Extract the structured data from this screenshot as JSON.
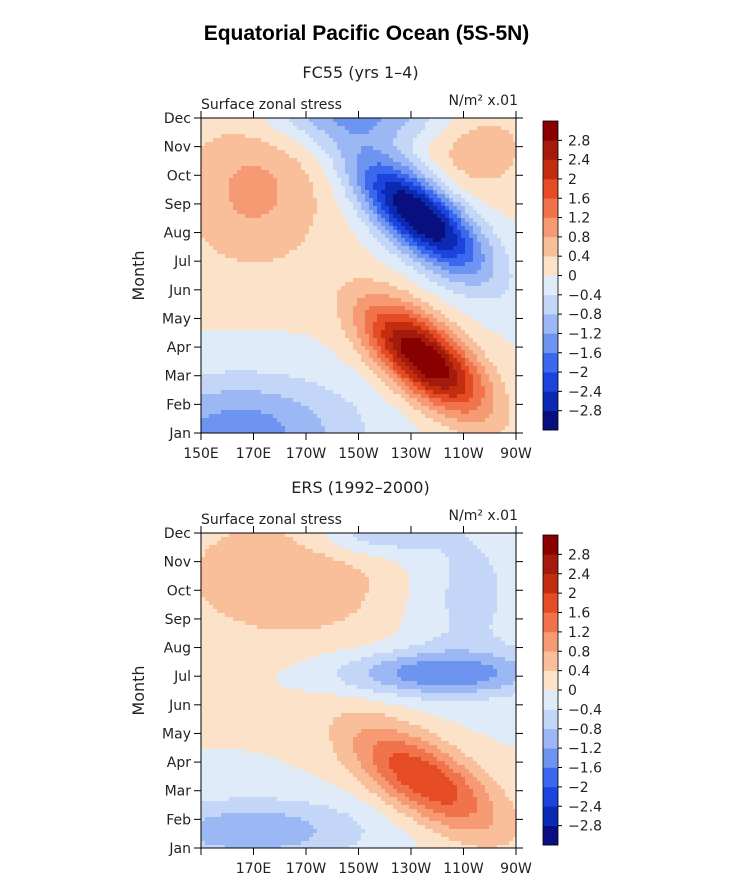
{
  "figure": {
    "title": "Equatorial Pacific Ocean (5S-5N)"
  },
  "chart_data": [
    {
      "type": "heatmap",
      "title": "FC55 (yrs 1–4)",
      "subtitle_left": "Surface zonal stress",
      "subtitle_right": "N/m² x.01",
      "ylabel": "Month",
      "x_ticks": [
        "150E",
        "170E",
        "170W",
        "150W",
        "130W",
        "110W",
        "90W"
      ],
      "y_ticks": [
        "Jan",
        "Feb",
        "Mar",
        "Apr",
        "May",
        "Jun",
        "Jul",
        "Aug",
        "Sep",
        "Oct",
        "Nov",
        "Dec"
      ],
      "colorbar_labels": [
        "2.8",
        "2.4",
        "2",
        "1.6",
        "1.2",
        "0.8",
        "0.4",
        "0",
        "−0.4",
        "−0.8",
        "−1.2",
        "−1.6",
        "−2",
        "−2.4",
        "−2.8"
      ],
      "x_range_deg_east": [
        150,
        270
      ],
      "y_range_month": [
        0,
        11
      ],
      "features": [
        {
          "lon": 235,
          "month": 2.6,
          "amp": 3.3,
          "slon": 16,
          "smon": 1.0,
          "tilt": -0.055
        },
        {
          "lon": 233,
          "month": 7.6,
          "amp": -3.4,
          "slon": 17,
          "smon": 1.0,
          "tilt": -0.06
        },
        {
          "lon": 165,
          "month": 0.1,
          "amp": -1.4,
          "slon": 30,
          "smon": 1.3,
          "tilt": 0
        },
        {
          "lon": 210,
          "month": 11.3,
          "amp": -1.3,
          "slon": 25,
          "smon": 0.9,
          "tilt": 0
        },
        {
          "lon": 170,
          "month": 8.5,
          "amp": 0.9,
          "slon": 20,
          "smon": 2.0,
          "tilt": 0
        },
        {
          "lon": 255,
          "month": 10.0,
          "amp": 0.7,
          "slon": 15,
          "smon": 1.2,
          "tilt": 0
        }
      ]
    },
    {
      "type": "heatmap",
      "title": "ERS (1992–2000)",
      "subtitle_left": "Surface zonal stress",
      "subtitle_right": "N/m² x.01",
      "ylabel": "Month",
      "x_ticks": [
        "",
        "170E",
        "170W",
        "150W",
        "130W",
        "110W",
        "90W"
      ],
      "y_ticks": [
        "Jan",
        "Feb",
        "Mar",
        "Apr",
        "May",
        "Jun",
        "Jul",
        "Aug",
        "Sep",
        "Oct",
        "Nov",
        "Dec"
      ],
      "colorbar_labels": [
        "2.8",
        "2.4",
        "2",
        "1.6",
        "1.2",
        "0.8",
        "0.4",
        "0",
        "−0.4",
        "−0.8",
        "−1.2",
        "−1.6",
        "−2",
        "−2.4",
        "−2.8"
      ],
      "x_range_deg_east": [
        150,
        270
      ],
      "y_range_month": [
        0,
        11
      ],
      "features": [
        {
          "lon": 235,
          "month": 2.4,
          "amp": 2.0,
          "slon": 20,
          "smon": 1.0,
          "tilt": -0.045
        },
        {
          "lon": 240,
          "month": 6.1,
          "amp": -1.4,
          "slon": 28,
          "smon": 0.55,
          "tilt": 0
        },
        {
          "lon": 185,
          "month": 9.5,
          "amp": 0.7,
          "slon": 35,
          "smon": 1.8,
          "tilt": 0
        },
        {
          "lon": 170,
          "month": 0.6,
          "amp": -1.1,
          "slon": 30,
          "smon": 0.8,
          "tilt": 0
        },
        {
          "lon": 215,
          "month": 11.0,
          "amp": -0.9,
          "slon": 16,
          "smon": 0.6,
          "tilt": 0
        },
        {
          "lon": 250,
          "month": 9.0,
          "amp": -0.6,
          "slon": 18,
          "smon": 2.2,
          "tilt": 0
        }
      ]
    }
  ],
  "colors": {
    "levels": [
      "#0a0f80",
      "#0b2ab4",
      "#1c44dd",
      "#3a68ee",
      "#6e94f2",
      "#9cb8f4",
      "#c4d6f7",
      "#e0ebfa",
      "#fde2ca",
      "#f8bf9a",
      "#f59a72",
      "#f1734c",
      "#e54b24",
      "#c22d10",
      "#a41a0d",
      "#880000"
    ]
  }
}
